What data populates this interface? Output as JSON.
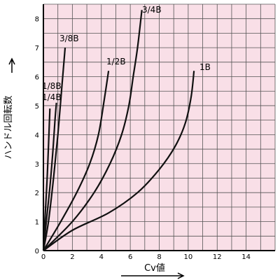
{
  "chart_data": {
    "type": "line",
    "xlabel": "Cv値",
    "ylabel": "ハンドル回転数",
    "xlim": [
      0,
      16
    ],
    "ylim": [
      0,
      8.5
    ],
    "x_ticks": [
      "0",
      "2",
      "4",
      "6",
      "8",
      "10",
      "12",
      "14"
    ],
    "y_ticks": [
      "0",
      "1",
      "2",
      "3",
      "4",
      "5",
      "6",
      "7",
      "8"
    ],
    "grid": true,
    "plot_background": "#f9dfe7",
    "grid_color": "#555555",
    "line_color": "#111111",
    "series": [
      {
        "name": "1/4B",
        "points": [
          [
            0,
            0
          ],
          [
            0.12,
            1.2
          ],
          [
            0.25,
            2.4
          ],
          [
            0.35,
            3.6
          ],
          [
            0.45,
            4.9
          ]
        ]
      },
      {
        "name": "1/8B",
        "points": [
          [
            0,
            0
          ],
          [
            0.2,
            1.0
          ],
          [
            0.45,
            2.2
          ],
          [
            0.65,
            3.4
          ],
          [
            0.8,
            4.5
          ],
          [
            0.9,
            5.1
          ]
        ]
      },
      {
        "name": "3/8B",
        "points": [
          [
            0,
            0
          ],
          [
            0.35,
            1.0
          ],
          [
            0.7,
            2.5
          ],
          [
            1.0,
            4.0
          ],
          [
            1.25,
            5.5
          ],
          [
            1.5,
            7.0
          ]
        ]
      },
      {
        "name": "1/2B",
        "points": [
          [
            0,
            0
          ],
          [
            1.2,
            1.0
          ],
          [
            2.3,
            2.0
          ],
          [
            3.2,
            3.0
          ],
          [
            3.8,
            4.0
          ],
          [
            4.2,
            5.2
          ],
          [
            4.5,
            6.2
          ]
        ]
      },
      {
        "name": "3/4B",
        "points": [
          [
            0,
            0
          ],
          [
            2.0,
            1.0
          ],
          [
            3.5,
            2.0
          ],
          [
            4.6,
            3.0
          ],
          [
            5.4,
            4.0
          ],
          [
            5.9,
            5.0
          ],
          [
            6.2,
            6.0
          ],
          [
            6.5,
            7.0
          ],
          [
            6.8,
            8.3
          ]
        ]
      },
      {
        "name": "1B",
        "points": [
          [
            0,
            0
          ],
          [
            2.0,
            0.7
          ],
          [
            4.5,
            1.3
          ],
          [
            6.5,
            2.0
          ],
          [
            8.0,
            2.8
          ],
          [
            9.1,
            3.6
          ],
          [
            9.8,
            4.4
          ],
          [
            10.2,
            5.3
          ],
          [
            10.4,
            6.2
          ]
        ]
      }
    ]
  }
}
